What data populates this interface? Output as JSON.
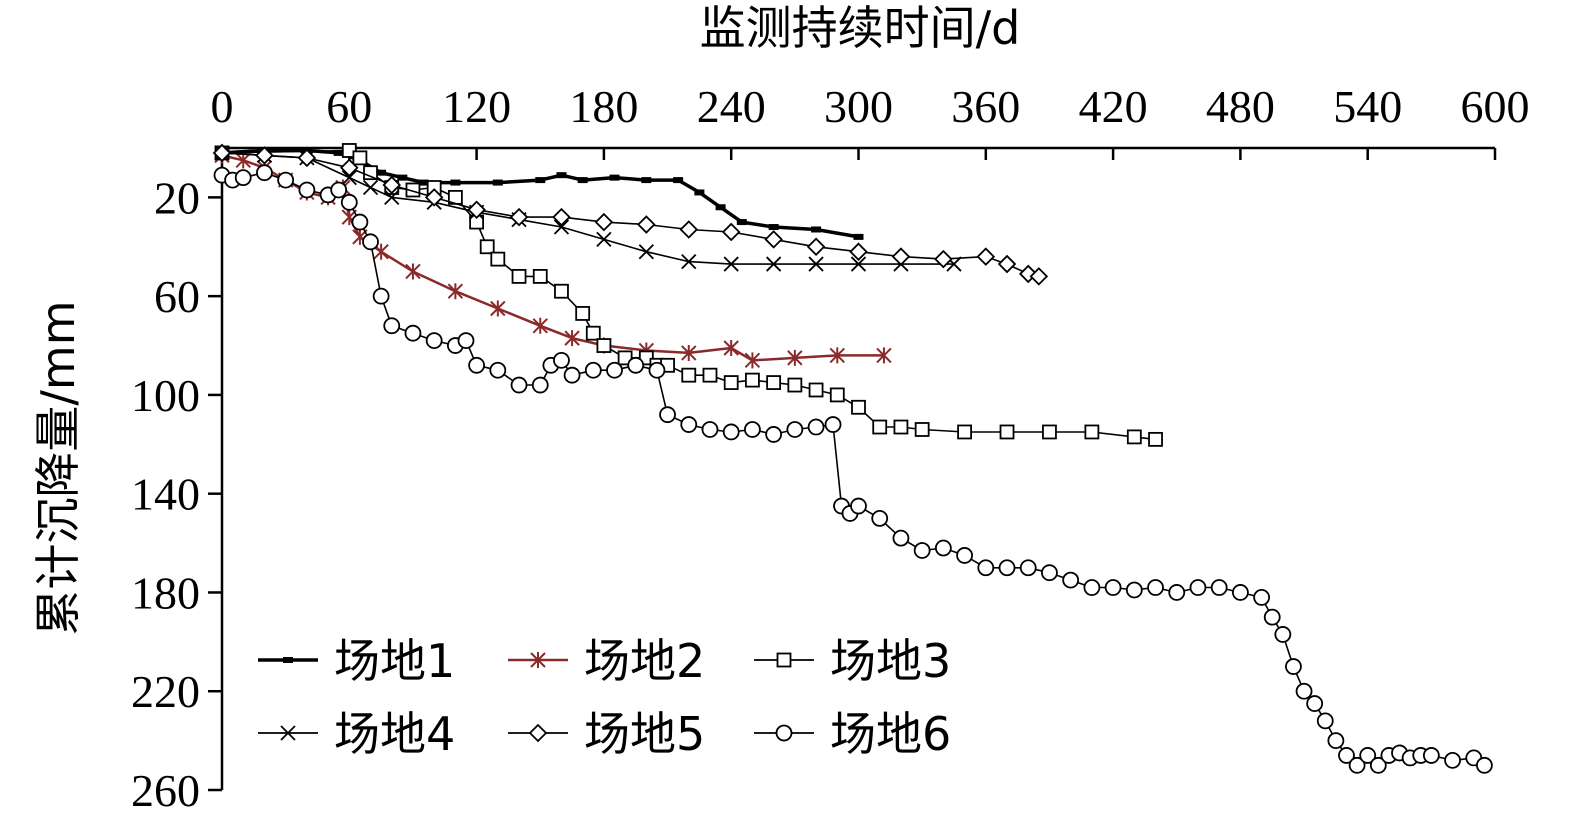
{
  "chart_data": {
    "type": "line",
    "xlabel": "监测持续时间/d",
    "ylabel": "累计沉降量/mm",
    "xlim": [
      0,
      600
    ],
    "ylim": [
      0,
      260
    ],
    "y_inverted": true,
    "x_axis_position": "top",
    "x_ticks": [
      "0",
      "60",
      "120",
      "180",
      "240",
      "300",
      "360",
      "420",
      "480",
      "540",
      "600"
    ],
    "y_ticks": [
      "20",
      "60",
      "100",
      "140",
      "180",
      "220",
      "260"
    ],
    "legend_position": "bottom-left",
    "series": [
      {
        "name": "场地1",
        "marker": "bar",
        "color": "#000000",
        "x": [
          0,
          20,
          40,
          55,
          65,
          75,
          85,
          95,
          110,
          130,
          150,
          160,
          170,
          185,
          200,
          215,
          225,
          235,
          245,
          260,
          280,
          300
        ],
        "y": [
          2,
          1,
          1,
          2,
          5,
          10,
          12,
          14,
          14,
          14,
          13,
          11,
          13,
          12,
          13,
          13,
          18,
          24,
          30,
          32,
          33,
          36
        ]
      },
      {
        "name": "场地2",
        "marker": "star",
        "color": "#8b2a2a",
        "x": [
          0,
          10,
          20,
          30,
          40,
          50,
          57,
          60,
          65,
          75,
          90,
          110,
          130,
          150,
          165,
          180,
          200,
          220,
          240,
          250,
          270,
          290,
          312
        ],
        "y": [
          3,
          5,
          8,
          13,
          18,
          20,
          16,
          28,
          36,
          42,
          50,
          58,
          65,
          72,
          77,
          80,
          82,
          83,
          81,
          86,
          85,
          84,
          84
        ]
      },
      {
        "name": "场地3",
        "marker": "square",
        "color": "#000000",
        "x": [
          0,
          60,
          65,
          70,
          80,
          90,
          100,
          110,
          120,
          125,
          130,
          140,
          150,
          160,
          170,
          175,
          180,
          190,
          200,
          205,
          210,
          220,
          230,
          240,
          250,
          260,
          270,
          280,
          290,
          300,
          310,
          320,
          330,
          350,
          370,
          390,
          410,
          430,
          440
        ],
        "y": [
          2,
          1,
          4,
          10,
          16,
          17,
          16,
          20,
          30,
          40,
          45,
          52,
          52,
          58,
          67,
          75,
          80,
          85,
          85,
          88,
          88,
          92,
          92,
          95,
          94,
          95,
          96,
          98,
          100,
          105,
          113,
          113,
          114,
          115,
          115,
          115,
          115,
          117,
          118
        ]
      },
      {
        "name": "场地4",
        "marker": "x",
        "color": "#000000",
        "x": [
          0,
          20,
          40,
          60,
          70,
          80,
          100,
          120,
          140,
          160,
          180,
          200,
          220,
          240,
          260,
          280,
          300,
          320,
          345
        ],
        "y": [
          2,
          3,
          4,
          12,
          16,
          20,
          22,
          26,
          29,
          32,
          37,
          42,
          46,
          47,
          47,
          47,
          47,
          47,
          47
        ]
      },
      {
        "name": "场地5",
        "marker": "diamond",
        "color": "#000000",
        "x": [
          0,
          20,
          40,
          60,
          80,
          100,
          120,
          140,
          160,
          180,
          200,
          220,
          240,
          260,
          280,
          300,
          320,
          340,
          360,
          370,
          380,
          385
        ],
        "y": [
          2,
          3,
          4,
          8,
          15,
          20,
          25,
          28,
          28,
          30,
          31,
          33,
          34,
          37,
          40,
          42,
          44,
          45,
          44,
          47,
          51,
          52
        ]
      },
      {
        "name": "场地6",
        "marker": "circle",
        "color": "#000000",
        "x": [
          0,
          5,
          10,
          20,
          30,
          40,
          50,
          55,
          60,
          65,
          70,
          75,
          80,
          90,
          100,
          110,
          115,
          120,
          130,
          140,
          150,
          155,
          160,
          165,
          175,
          185,
          195,
          205,
          210,
          220,
          230,
          240,
          250,
          260,
          270,
          280,
          288,
          292,
          296,
          300,
          310,
          320,
          330,
          340,
          350,
          360,
          370,
          380,
          390,
          400,
          410,
          420,
          430,
          440,
          450,
          460,
          470,
          480,
          490,
          495,
          500,
          505,
          510,
          515,
          520,
          525,
          530,
          535,
          540,
          545,
          550,
          555,
          560,
          565,
          570,
          580,
          590,
          595
        ],
        "y": [
          11,
          13,
          12,
          10,
          13,
          17,
          19,
          17,
          22,
          30,
          38,
          60,
          72,
          75,
          78,
          80,
          78,
          88,
          90,
          96,
          96,
          88,
          86,
          92,
          90,
          90,
          88,
          90,
          108,
          112,
          114,
          115,
          114,
          116,
          114,
          113,
          112,
          145,
          148,
          145,
          150,
          158,
          163,
          162,
          165,
          170,
          170,
          170,
          172,
          175,
          178,
          178,
          179,
          178,
          180,
          178,
          178,
          180,
          182,
          190,
          197,
          210,
          220,
          225,
          232,
          240,
          246,
          250,
          246,
          250,
          246,
          245,
          247,
          246,
          246,
          248,
          247,
          250
        ]
      }
    ]
  }
}
